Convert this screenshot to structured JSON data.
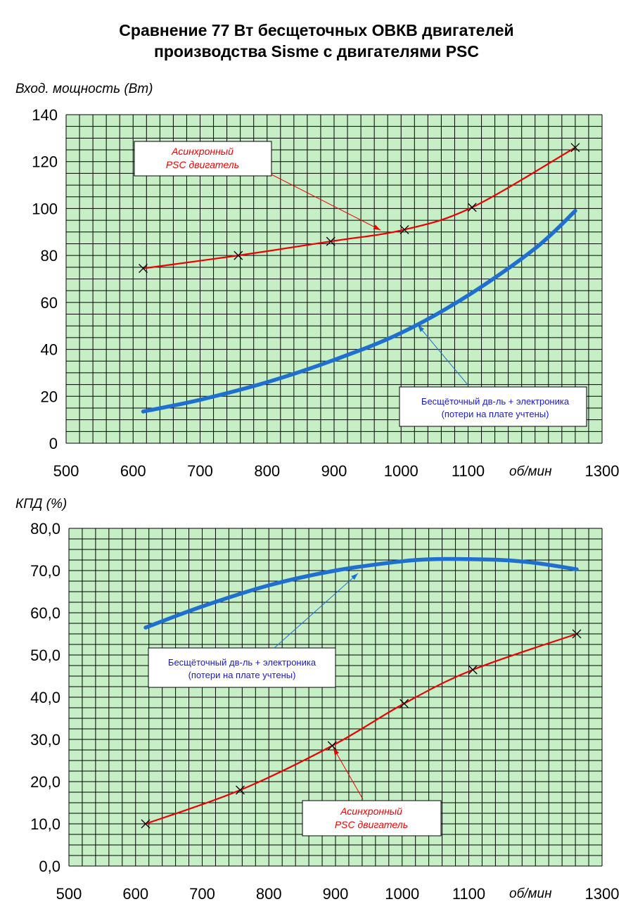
{
  "title": {
    "line1": "Сравнение 77 Вт бесщеточных ОВКВ двигателей",
    "line2": "производства Sisme с двигателями PSC"
  },
  "colors": {
    "plot_background": "#c6efc6",
    "grid": "#000000",
    "psc_series": "#ee0000",
    "bldc_series": "#1e6fd0",
    "bldc_callout_text": "#1a1acc"
  },
  "chart_data": [
    {
      "type": "line",
      "ylabel": "Вход. мощность (Вт)",
      "xlabel": "об/мин",
      "xlim": [
        500,
        1300
      ],
      "ylim": [
        0,
        140
      ],
      "xticks": [
        "500",
        "600",
        "700",
        "800",
        "900",
        "1000",
        "1100",
        "1300"
      ],
      "yticks": [
        "0",
        "20",
        "40",
        "60",
        "80",
        "100",
        "120",
        "140"
      ],
      "grid": true,
      "series": [
        {
          "name": "Асинхронный PSC двигатель",
          "markers": "x",
          "x": [
            615,
            757,
            895,
            1005,
            1106,
            1260
          ],
          "y": [
            74.5,
            80,
            86,
            91,
            100.5,
            126
          ]
        },
        {
          "name": "Бесщёточный дв-ль + электроника (потери на плате учтены)",
          "markers": "none",
          "x": [
            615,
            700,
            800,
            900,
            1000,
            1100,
            1200,
            1260
          ],
          "y": [
            13.5,
            18.5,
            26,
            35.5,
            47,
            63,
            83,
            99
          ]
        }
      ],
      "annotations": {
        "psc": {
          "line1": "Асинхронный",
          "line2": "PSC двигатель"
        },
        "bldc": {
          "line1": "Бесщёточный дв-ль + электроника",
          "line2": "(потери на плате учтены)"
        }
      }
    },
    {
      "type": "line",
      "ylabel": "КПД (%)",
      "xlabel": "об/мин",
      "xlim": [
        500,
        1300
      ],
      "ylim": [
        0,
        80
      ],
      "xticks": [
        "500",
        "600",
        "700",
        "800",
        "900",
        "1000",
        "1100",
        "1300"
      ],
      "yticks": [
        "0,0",
        "10,0",
        "20,0",
        "30,0",
        "40,0",
        "50,0",
        "60,0",
        "70,0",
        "80,0"
      ],
      "grid": true,
      "series": [
        {
          "name": "Асинхронный PSC двигатель",
          "markers": "x",
          "x": [
            615,
            757,
            895,
            1003,
            1106,
            1262
          ],
          "y": [
            10,
            18,
            28.5,
            38.5,
            46.5,
            55
          ]
        },
        {
          "name": "Бесщёточный дв-ль + электроника (потери на плате учтены)",
          "markers": "none",
          "x": [
            615,
            700,
            800,
            900,
            1000,
            1050,
            1100,
            1150,
            1200,
            1262
          ],
          "y": [
            56.5,
            61.5,
            66.5,
            70,
            72.2,
            72.7,
            72.7,
            72.5,
            71.8,
            70.3
          ]
        }
      ],
      "annotations": {
        "bldc": {
          "line1": "Бесщёточный дв-ль + электроника",
          "line2": "(потери на плате учтены)"
        },
        "psc": {
          "line1": "Асинхронный",
          "line2": "PSC двигатель"
        }
      }
    }
  ]
}
